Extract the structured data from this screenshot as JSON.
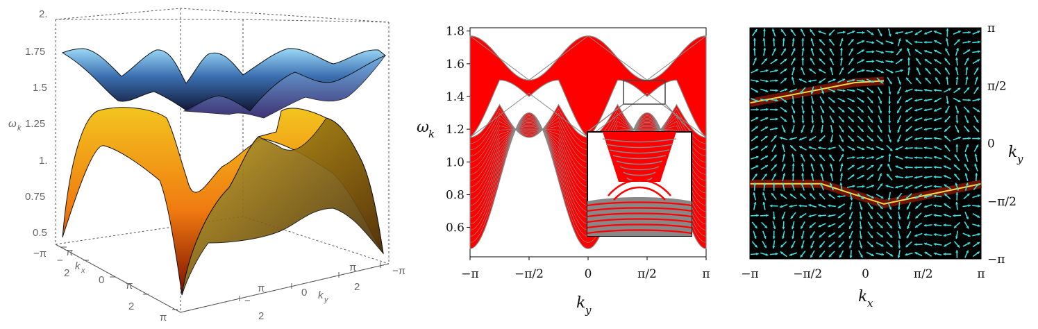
{
  "chart_data": [
    {
      "type": "surface",
      "z_ticks": [
        "0.5",
        "0.75",
        "1.",
        "1.25",
        "1.5",
        "1.75",
        "2."
      ],
      "zlabel": "ω",
      "zlabel_sub": "k",
      "kx_ticks": [
        "−π",
        "−",
        "π",
        "2",
        "0",
        "π",
        "2",
        "π"
      ],
      "ky_ticks": [
        "−π",
        "π",
        "−",
        "2",
        "0",
        "π",
        "2",
        "π"
      ],
      "kx_label": "k",
      "kx_sub": "x",
      "ky_label": "k",
      "ky_sub": "y",
      "zlim": [
        0.45,
        2.0
      ],
      "upper_band": {
        "min": 1.35,
        "max": 1.75,
        "color_top": "#8fd4f5",
        "color_bottom": "#0d1a3a"
      },
      "lower_band": {
        "min": 0.42,
        "max": 1.4,
        "color_top": "#f5c21a",
        "color_bottom": "#7a0f00"
      }
    },
    {
      "type": "line",
      "xlabel": "k",
      "xlabel_sub": "y",
      "ylabel": "ω",
      "ylabel_sub": "k",
      "x_ticks": [
        "−π",
        "−π/2",
        "0",
        "π/2",
        "π"
      ],
      "y_ticks": [
        "0.6",
        "0.8",
        "1.0",
        "1.2",
        "1.4",
        "1.6",
        "1.8"
      ],
      "ylim": [
        0.42,
        1.82
      ],
      "band_color": "#ff0000",
      "bulk_band": {
        "x": [
          -3.1416,
          -2.356,
          -1.5708,
          -0.785,
          0,
          0.785,
          1.5708,
          2.356,
          3.1416
        ],
        "lower": [
          1.15,
          0.86,
          1.3,
          0.86,
          1.15,
          0.86,
          1.3,
          0.86,
          1.15
        ],
        "lower_min": [
          0.47,
          0.86,
          1.3,
          0.86,
          0.47,
          0.86,
          1.3,
          0.86,
          0.47
        ],
        "upper": [
          1.77,
          1.6,
          1.5,
          1.6,
          1.77,
          1.6,
          1.5,
          1.6,
          1.77
        ],
        "upper_min": [
          1.77,
          1.52,
          1.41,
          1.52,
          1.15,
          1.52,
          1.41,
          1.52,
          1.77
        ]
      },
      "inset_note": "zoom near k_y = π/2"
    },
    {
      "type": "vector_field",
      "xlabel": "k",
      "xlabel_sub": "x",
      "ylabel": "k",
      "ylabel_sub": "y",
      "x_ticks": [
        "−π",
        "−π/2",
        "0",
        "π/2",
        "π"
      ],
      "y_ticks": [
        "π",
        "π/2",
        "0",
        "−π/2",
        "−π"
      ],
      "background": "#000000",
      "arrow_color": "#3fe0e0",
      "line_color": "#cc2200",
      "curves": [
        {
          "kx": [
            -3.1416,
            -1.5708,
            -0.3,
            0.5
          ],
          "ky": [
            1.1,
            1.4,
            1.65,
            1.7
          ]
        },
        {
          "kx": [
            -3.1416,
            -1.2,
            0.5,
            3.1416
          ],
          "ky": [
            -1.1,
            -1.1,
            -1.65,
            -1.1
          ]
        }
      ]
    }
  ]
}
